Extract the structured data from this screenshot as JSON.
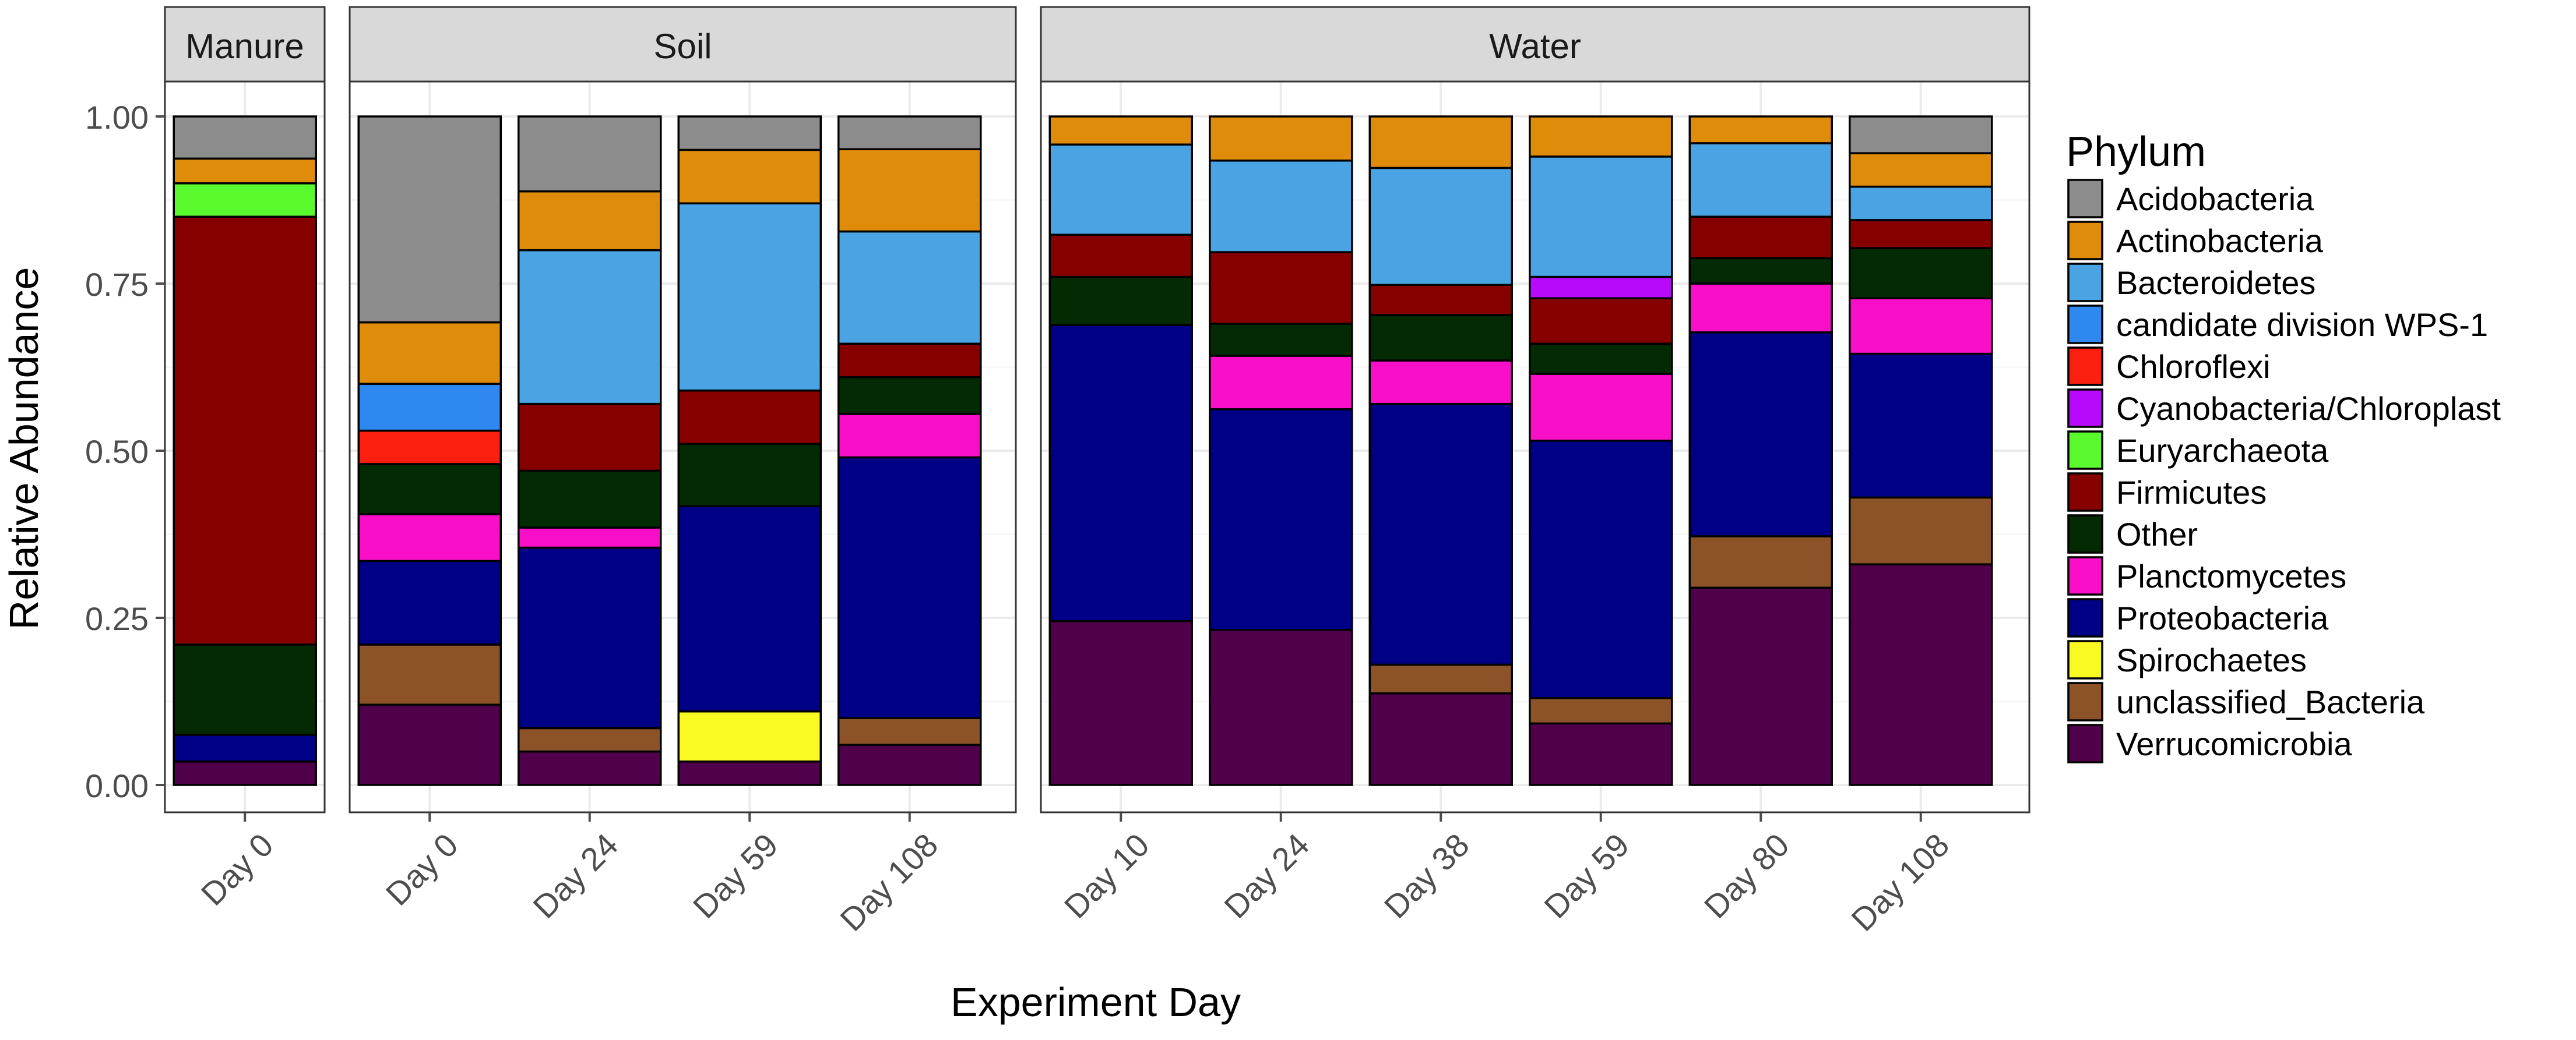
{
  "chart_data": {
    "type": "bar",
    "stacked": true,
    "y_axis_label": "Relative Abundance",
    "x_axis_label": "Experiment Day",
    "ylim": [
      0,
      1
    ],
    "y_ticks": [
      "0.00",
      "0.25",
      "0.50",
      "0.75",
      "1.00"
    ],
    "y_tick_values": [
      0,
      0.25,
      0.5,
      0.75,
      1
    ],
    "legend_title": "Phylum",
    "legend_position": "right",
    "series": [
      {
        "name": "Acidobacteria",
        "color": "#8c8c8c"
      },
      {
        "name": "Actinobacteria",
        "color": "#e08c0b"
      },
      {
        "name": "Bacteroidetes",
        "color": "#4aa3e2"
      },
      {
        "name": "candidate division WPS-1",
        "color": "#2f87f0"
      },
      {
        "name": "Chloroflexi",
        "color": "#fa1f0f"
      },
      {
        "name": "Cyanobacteria/Chloroplast",
        "color": "#b70afa"
      },
      {
        "name": "Euryarchaeota",
        "color": "#5bfa2f"
      },
      {
        "name": "Firmicutes",
        "color": "#870000"
      },
      {
        "name": "Other",
        "color": "#042a04"
      },
      {
        "name": "Planctomycetes",
        "color": "#fa0fc8"
      },
      {
        "name": "Proteobacteria",
        "color": "#000087"
      },
      {
        "name": "Spirochaetes",
        "color": "#fafa23"
      },
      {
        "name": "unclassified_Bacteria",
        "color": "#8b5327"
      },
      {
        "name": "Verrucomicrobia",
        "color": "#50004b"
      }
    ],
    "facets": [
      {
        "name": "Manure",
        "categories": [
          "Day 0"
        ],
        "values": {
          "Verrucomicrobia": [
            0.035
          ],
          "unclassified_Bacteria": [
            0.0
          ],
          "Spirochaetes": [
            0.0
          ],
          "Proteobacteria": [
            0.04
          ],
          "Planctomycetes": [
            0.0
          ],
          "Other": [
            0.135
          ],
          "Firmicutes": [
            0.64
          ],
          "Euryarchaeota": [
            0.05
          ],
          "Cyanobacteria/Chloroplast": [
            0.0
          ],
          "Chloroflexi": [
            0.0
          ],
          "candidate division WPS-1": [
            0.0
          ],
          "Bacteroidetes": [
            0.0
          ],
          "Actinobacteria": [
            0.037
          ],
          "Acidobacteria": [
            0.063
          ]
        }
      },
      {
        "name": "Soil",
        "categories": [
          "Day 0",
          "Day 24",
          "Day 59",
          "Day 108"
        ],
        "values": {
          "Verrucomicrobia": [
            0.12,
            0.05,
            0.035,
            0.06
          ],
          "unclassified_Bacteria": [
            0.09,
            0.035,
            0.0,
            0.04
          ],
          "Spirochaetes": [
            0.0,
            0.0,
            0.075,
            0.0
          ],
          "Proteobacteria": [
            0.125,
            0.27,
            0.307,
            0.39
          ],
          "Planctomycetes": [
            0.07,
            0.03,
            0.0,
            0.065
          ],
          "Other": [
            0.075,
            0.085,
            0.093,
            0.055
          ],
          "Firmicutes": [
            0.0,
            0.1,
            0.08,
            0.05
          ],
          "Euryarchaeota": [
            0.0,
            0.0,
            0.0,
            0.0
          ],
          "Cyanobacteria/Chloroplast": [
            0.0,
            0.0,
            0.0,
            0.0
          ],
          "Chloroflexi": [
            0.05,
            0.0,
            0.0,
            0.0
          ],
          "candidate division WPS-1": [
            0.07,
            0.0,
            0.0,
            0.0
          ],
          "Bacteroidetes": [
            0.0,
            0.23,
            0.28,
            0.168
          ],
          "Actinobacteria": [
            0.092,
            0.088,
            0.08,
            0.123
          ],
          "Acidobacteria": [
            0.308,
            0.112,
            0.05,
            0.049
          ]
        }
      },
      {
        "name": "Water",
        "categories": [
          "Day 10",
          "Day 24",
          "Day 38",
          "Day 59",
          "Day 80",
          "Day 108"
        ],
        "values": {
          "Verrucomicrobia": [
            0.245,
            0.232,
            0.137,
            0.092,
            0.295,
            0.33
          ],
          "unclassified_Bacteria": [
            0.0,
            0.0,
            0.043,
            0.038,
            0.077,
            0.1
          ],
          "Spirochaetes": [
            0.0,
            0.0,
            0.0,
            0.0,
            0.0,
            0.0
          ],
          "Proteobacteria": [
            0.443,
            0.33,
            0.39,
            0.385,
            0.305,
            0.215
          ],
          "Planctomycetes": [
            0.0,
            0.08,
            0.065,
            0.1,
            0.073,
            0.083
          ],
          "Other": [
            0.072,
            0.048,
            0.068,
            0.045,
            0.038,
            0.075
          ],
          "Firmicutes": [
            0.063,
            0.107,
            0.045,
            0.068,
            0.062,
            0.042
          ],
          "Euryarchaeota": [
            0.0,
            0.0,
            0.0,
            0.0,
            0.0,
            0.0
          ],
          "Cyanobacteria/Chloroplast": [
            0.0,
            0.0,
            0.0,
            0.032,
            0.0,
            0.0
          ],
          "Chloroflexi": [
            0.0,
            0.0,
            0.0,
            0.0,
            0.0,
            0.0
          ],
          "candidate division WPS-1": [
            0.0,
            0.0,
            0.0,
            0.0,
            0.0,
            0.0
          ],
          "Bacteroidetes": [
            0.135,
            0.137,
            0.175,
            0.18,
            0.11,
            0.05
          ],
          "Actinobacteria": [
            0.042,
            0.066,
            0.077,
            0.06,
            0.04,
            0.05
          ],
          "Acidobacteria": [
            0.0,
            0.0,
            0.0,
            0.0,
            0.0,
            0.055
          ]
        }
      }
    ]
  }
}
